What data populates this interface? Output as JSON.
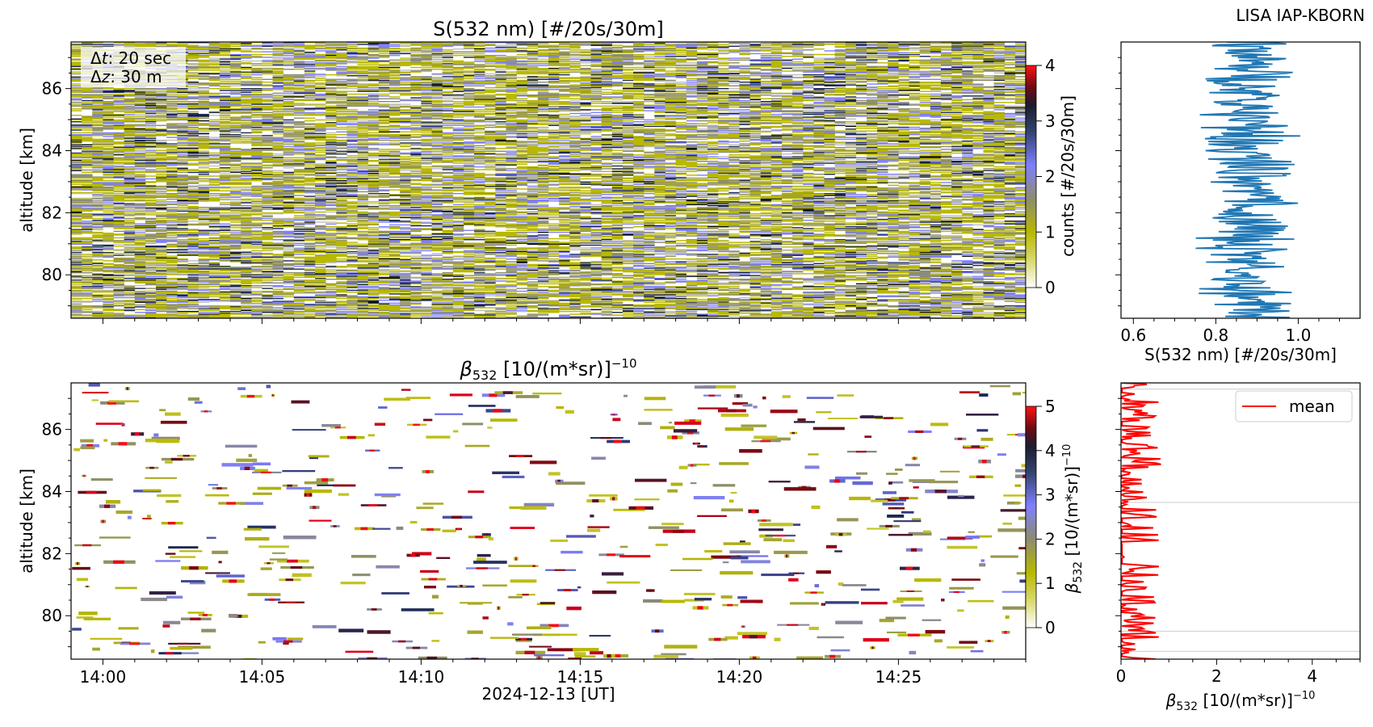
{
  "corner_label": "LISA IAP-KBORN",
  "annotation": {
    "dt_text": ": 20 sec",
    "dz_text": ": 30 m"
  },
  "colors": {
    "series_line": "#1f77b4",
    "mean_line": "#ff0000",
    "colormap": [
      "#ffffff",
      "#b8b800",
      "#8c8c6e",
      "#7f7fff",
      "#1c2a55",
      "#6b0b12",
      "#e0001a",
      "#ff1111"
    ]
  },
  "chart_data": [
    {
      "id": "signal_heatmap",
      "type": "heatmap",
      "title": "S(532 nm) [#/20s/30m]",
      "xlabel": "",
      "ylabel": "altitude [km]",
      "xlim": [
        "13:59",
        "14:29"
      ],
      "ylim": [
        78.6,
        87.5
      ],
      "y_ticks": [
        80,
        82,
        84,
        86
      ],
      "colorbar": {
        "label": "counts [#/20s/30m]",
        "min": 0,
        "max": 4,
        "ticks": [
          0,
          1,
          2,
          3,
          4
        ]
      },
      "value_description": "random Poisson-like counts 0-4, dense noise field"
    },
    {
      "id": "signal_profile",
      "type": "line",
      "title": "",
      "xlabel": "S(532 nm) [#/20s/30m]",
      "ylabel": "",
      "xlim": [
        0.57,
        1.15
      ],
      "ylim": [
        78.6,
        87.5
      ],
      "x_ticks": [
        0.6,
        0.8,
        1.0
      ],
      "x_tick_labels": [
        "0.6",
        "0.8",
        "1.0"
      ],
      "profile_center": 0.88,
      "profile_spread": 0.12
    },
    {
      "id": "beta_heatmap",
      "type": "heatmap",
      "title": "[10/(m*sr)]",
      "title_symbol": "β",
      "title_subscript": "532",
      "title_superscript": "−10",
      "xlabel": "2024-12-13 [UT]",
      "ylabel": "altitude [km]",
      "xlim": [
        "13:59",
        "14:29"
      ],
      "ylim": [
        78.6,
        87.5
      ],
      "x_ticks": [
        "14:00",
        "14:05",
        "14:10",
        "14:15",
        "14:20",
        "14:25"
      ],
      "y_ticks": [
        80,
        82,
        84,
        86
      ],
      "colorbar": {
        "label_symbol": "β",
        "label_subscript": "532",
        "label_superscript": "−10",
        "label_rest": "[10/(m*sr)]",
        "min": 0,
        "max": 5,
        "ticks": [
          0,
          1,
          2,
          3,
          4,
          5
        ]
      },
      "value_description": "sparse short horizontal streaks, mostly 0"
    },
    {
      "id": "beta_profile",
      "type": "line",
      "title": "",
      "xlabel_symbol": "β",
      "xlabel_subscript": "532",
      "xlabel_superscript": "−10",
      "xlabel_rest": "[10/(m*sr)]",
      "xlim": [
        0,
        5
      ],
      "ylim": [
        78.6,
        87.5
      ],
      "x_ticks": [
        0,
        2,
        4
      ],
      "series": [
        {
          "name": "mean",
          "color": "#ff0000"
        }
      ],
      "legend": "top-right",
      "hlines": [
        87.3,
        83.65,
        79.5,
        78.85
      ]
    }
  ]
}
